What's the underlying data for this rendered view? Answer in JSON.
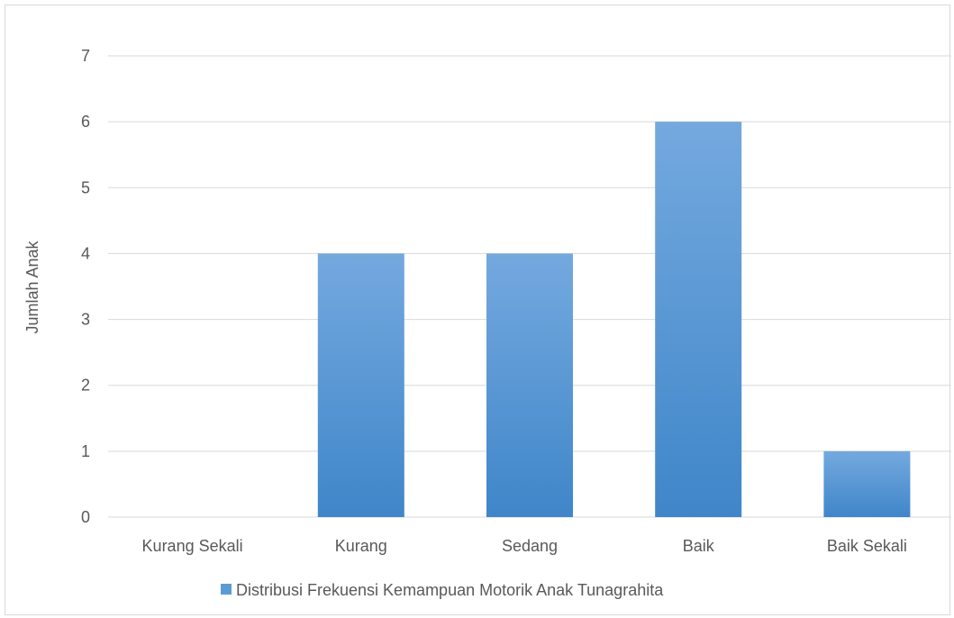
{
  "chart_data": {
    "type": "bar",
    "title": "",
    "xlabel": "",
    "ylabel": "Jumlah Anak",
    "categories": [
      "Kurang Sekali",
      "Kurang",
      "Sedang",
      "Baik",
      "Baik Sekali"
    ],
    "series": [
      {
        "name": "Distribusi Frekuensi Kemampuan Motorik Anak Tunagrahita",
        "values": [
          0,
          4,
          4,
          6,
          1
        ],
        "color": "#5b9bd5",
        "gradient_top": "#74a9df",
        "gradient_bottom": "#3f86c9"
      }
    ],
    "ylim": [
      0,
      7
    ],
    "yticks": [
      0,
      1,
      2,
      3,
      4,
      5,
      6,
      7
    ],
    "grid": true,
    "gridline_color": "#d9d9d9",
    "legend_position": "bottom"
  }
}
